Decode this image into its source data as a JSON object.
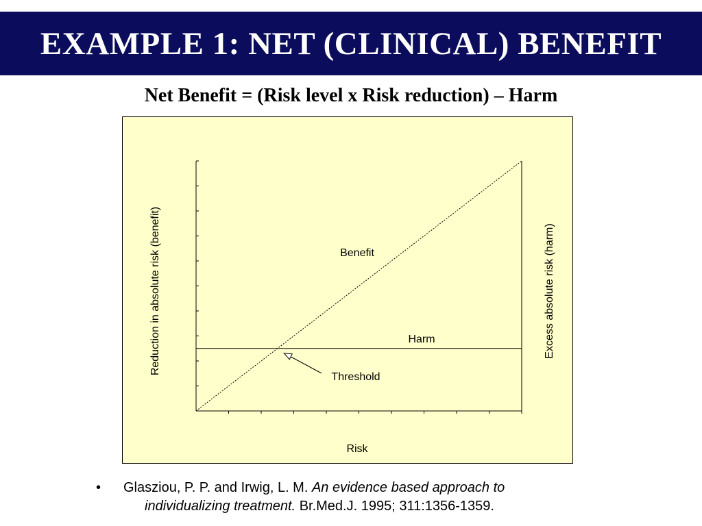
{
  "slide": {
    "title": "EXAMPLE 1: NET (CLINICAL) BENEFIT",
    "subtitle": "Net Benefit = (Risk level x Risk reduction) – Harm"
  },
  "chart_data": {
    "type": "line",
    "xlabel": "Risk",
    "ylabel": "Reduction in absolute risk (benefit)",
    "y2label": "Excess absolute risk (harm)",
    "x_tick_count": 10,
    "y_tick_count": 10,
    "series": [
      {
        "name": "Benefit",
        "style": "dotted",
        "x": [
          0,
          1
        ],
        "y": [
          0,
          1
        ]
      },
      {
        "name": "Harm",
        "style": "solid",
        "x": [
          0,
          1
        ],
        "y": [
          0.25,
          0.25
        ]
      }
    ],
    "annotations": [
      {
        "text": "Threshold",
        "x": 0.27,
        "y": 0.25
      }
    ],
    "colors": {
      "panel": "#ffffcc",
      "lines": "#000000"
    }
  },
  "citation": {
    "bullet": "•",
    "authors": "Glasziou, P. P. and Irwig, L. M.",
    "title_line1": "An evidence based approach to",
    "title_line2": "individualizing treatment.",
    "journal": "Br.Med.J. 1995; 311:1356-1359."
  }
}
